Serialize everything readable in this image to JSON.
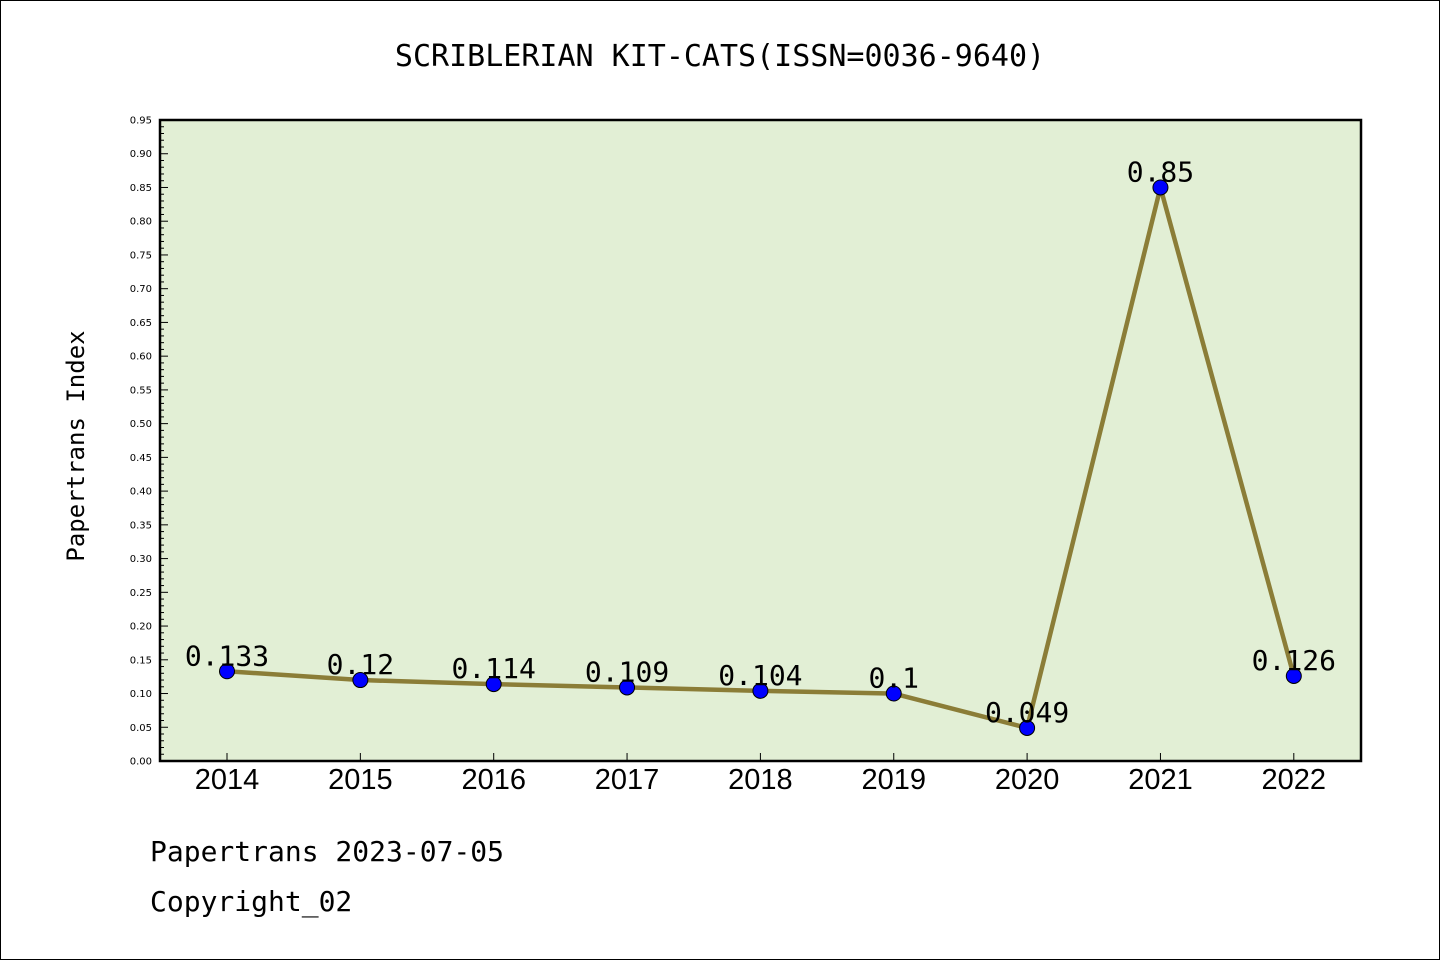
{
  "chart_data": {
    "type": "line",
    "title": "SCRIBLERIAN KIT-CATS(ISSN=0036-9640)",
    "xlabel": "",
    "ylabel": "Papertrans Index",
    "categories": [
      "2014",
      "2015",
      "2016",
      "2017",
      "2018",
      "2019",
      "2020",
      "2021",
      "2022"
    ],
    "series": [
      {
        "values": [
          0.133,
          0.12,
          0.114,
          0.109,
          0.104,
          0.1,
          0.049,
          0.85,
          0.126
        ],
        "data_labels": [
          "0.133",
          "0.12",
          "0.114",
          "0.109",
          "0.104",
          "0.1",
          "0.049",
          "0.85",
          "0.126"
        ],
        "line_color": "#8b7d37",
        "marker_color": "#0000ff"
      }
    ],
    "ylim": [
      0,
      0.95
    ],
    "yticks": [
      "0.00",
      "0.05",
      "0.10",
      "0.15",
      "0.20",
      "0.25",
      "0.30",
      "0.35",
      "0.40",
      "0.45",
      "0.50",
      "0.55",
      "0.60",
      "0.65",
      "0.70",
      "0.75",
      "0.80",
      "0.85",
      "0.90",
      "0.95"
    ],
    "grid": false,
    "legend": "none",
    "plot_background": "#e2efd5"
  },
  "footer": {
    "line1": "Papertrans 2023-07-05",
    "line2": "Copyright_02"
  }
}
